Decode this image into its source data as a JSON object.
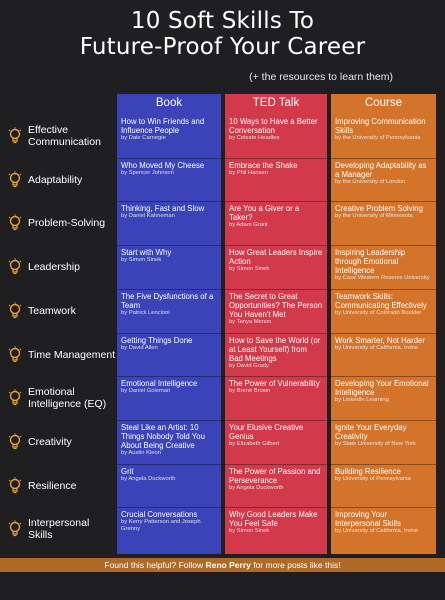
{
  "title_line1": "10 Soft Skills To",
  "title_line2": "Future-Proof Your Career",
  "subtitle": "(+ the resources to learn them)",
  "columns": {
    "book": "Book",
    "ted": "TED Talk",
    "course": "Course"
  },
  "colors": {
    "book": "#3a43b8",
    "ted": "#d2394a",
    "course": "#d4742b",
    "bulb": "#e8a23a"
  },
  "rows": [
    {
      "skill": "Effective Communication",
      "book": {
        "title": "How to Win Friends and Influence People",
        "by": "by Dale Carnegie"
      },
      "ted": {
        "title": "10 Ways to Have a Better Conversation",
        "by": "by Celeste Headlee"
      },
      "course": {
        "title": "Improving Communication Skills",
        "by": "by the University of Pennsylvania"
      }
    },
    {
      "skill": "Adaptability",
      "book": {
        "title": "Who Moved My Cheese",
        "by": "by Spencer Johnson"
      },
      "ted": {
        "title": "Embrace the Shake",
        "by": "by Phil Hansen"
      },
      "course": {
        "title": "Developing Adaptability as a Manager",
        "by": "by the University of London"
      }
    },
    {
      "skill": "Problem-Solving",
      "book": {
        "title": "Thinking, Fast and Slow",
        "by": "by Daniel Kahneman"
      },
      "ted": {
        "title": "Are You a Giver or a Taker?",
        "by": "by Adam Grant"
      },
      "course": {
        "title": "Creative Problem Solving",
        "by": "by the University of Minnesota"
      }
    },
    {
      "skill": "Leadership",
      "book": {
        "title": "Start with Why",
        "by": "by Simon Sinek"
      },
      "ted": {
        "title": "How Great Leaders Inspire Action",
        "by": "by Simon Sinek"
      },
      "course": {
        "title": "Inspiring Leadership through Emotional Intelligence",
        "by": "by Case Western Reserve University"
      }
    },
    {
      "skill": "Teamwork",
      "book": {
        "title": "The Five Dysfunctions of a Team",
        "by": "by Patrick Lencioni"
      },
      "ted": {
        "title": "The Secret to Great Opportunities? The Person You Haven't Met",
        "by": "by Tanya Menon"
      },
      "course": {
        "title": "Teamwork Skills: Communicating Effectively",
        "by": "by University of Colorado Boulder"
      }
    },
    {
      "skill": "Time Management",
      "book": {
        "title": "Getting Things Done",
        "by": "by David Allen"
      },
      "ted": {
        "title": "How to Save the World (or at Least Yourself) from Bad Meetings",
        "by": "by David Grady"
      },
      "course": {
        "title": "Work Smarter, Not Harder",
        "by": "by University of California, Irvine"
      }
    },
    {
      "skill": "Emotional Intelligence (EQ)",
      "book": {
        "title": "Emotional Intelligence",
        "by": "by Daniel Goleman"
      },
      "ted": {
        "title": "The Power of Vulnerability",
        "by": "by Brené Brown"
      },
      "course": {
        "title": "Developing Your Emotional Intelligence",
        "by": "by LinkedIn Learning"
      }
    },
    {
      "skill": "Creativity",
      "book": {
        "title": "Steal Like an Artist: 10 Things Nobody Told You About Being Creative",
        "by": "by Austin Kleon"
      },
      "ted": {
        "title": "Your Elusive Creative Genius",
        "by": "by Elizabeth Gilbert"
      },
      "course": {
        "title": "Ignite Your Everyday Creativity",
        "by": "by State University of New York"
      }
    },
    {
      "skill": "Resilience",
      "book": {
        "title": "Grit",
        "by": "by Angela Duckworth"
      },
      "ted": {
        "title": "The Power of Passion and Perseverance",
        "by": "by Angela Duckworth"
      },
      "course": {
        "title": "Building Resilience",
        "by": "by University of Pennsylvania"
      }
    },
    {
      "skill": "Interpersonal Skills",
      "book": {
        "title": "Crucial Conversations",
        "by": "by Kerry Patterson and Joseph Grenny"
      },
      "ted": {
        "title": "Why Good Leaders Make You Feel Safe",
        "by": "by Simon Sinek"
      },
      "course": {
        "title": "Improving Your Interpersonal Skills",
        "by": "by University of California, Irvine"
      }
    }
  ],
  "footer": {
    "pre": "Found this helpful? Follow ",
    "name": "Reno Perry",
    "post": " for more posts like this!"
  }
}
